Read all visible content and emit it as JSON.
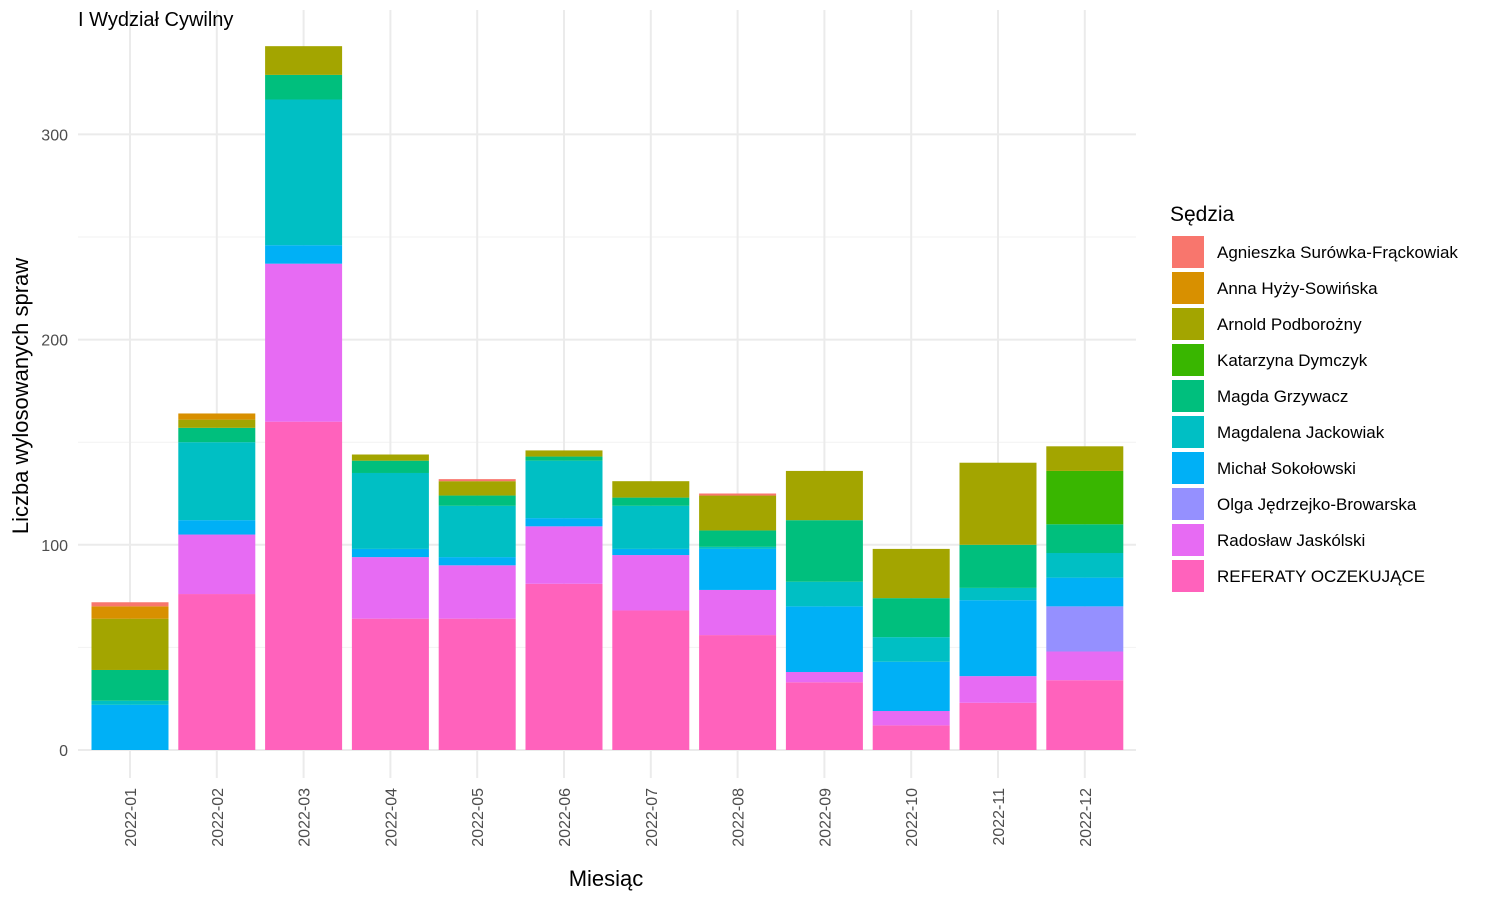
{
  "chart_data": {
    "type": "bar",
    "stacked": true,
    "title": "I Wydział Cywilny",
    "xlabel": "Miesiąc",
    "ylabel": "Liczba wylosowanych spraw",
    "ylim": [
      0,
      350
    ],
    "yticks": [
      0,
      100,
      200,
      300
    ],
    "grid": true,
    "legend_title": "Sędzia",
    "legend_position": "right",
    "categories": [
      "2022-01",
      "2022-02",
      "2022-03",
      "2022-04",
      "2022-05",
      "2022-06",
      "2022-07",
      "2022-08",
      "2022-09",
      "2022-10",
      "2022-11",
      "2022-12"
    ],
    "stack_order": [
      "REFERATY OCZEKUJĄCE",
      "Radosław Jaskólski",
      "Olga Jędrzejko-Browarska",
      "Michał Sokołowski",
      "Magdalena Jackowiak",
      "Magda Grzywacz",
      "Katarzyna Dymczyk",
      "Arnold Podborożny",
      "Anna Hyży-Sowińska",
      "Agnieszka Surówka-Frąckowiak"
    ],
    "series": [
      {
        "name": "Agnieszka Surówka-Frąckowiak",
        "color": "#F8766D",
        "values": [
          2,
          0,
          0,
          0,
          1,
          0,
          0,
          1,
          0,
          0,
          0,
          0
        ]
      },
      {
        "name": "Anna Hyży-Sowińska",
        "color": "#D89000",
        "values": [
          6,
          3,
          0,
          0,
          0,
          0,
          0,
          0,
          0,
          0,
          0,
          0
        ]
      },
      {
        "name": "Arnold Podborożny",
        "color": "#A3A500",
        "values": [
          25,
          4,
          14,
          3,
          7,
          3,
          8,
          17,
          24,
          24,
          40,
          12
        ]
      },
      {
        "name": "Katarzyna Dymczyk",
        "color": "#39B600",
        "values": [
          0,
          0,
          0,
          0,
          0,
          0,
          0,
          0,
          0,
          0,
          0,
          26
        ]
      },
      {
        "name": "Magda Grzywacz",
        "color": "#00BF7D",
        "values": [
          15,
          7,
          12,
          6,
          5,
          2,
          4,
          8,
          30,
          19,
          21,
          14
        ]
      },
      {
        "name": "Magdalena Jackowiak",
        "color": "#00BFC4",
        "values": [
          2,
          38,
          71,
          37,
          25,
          28,
          21,
          1,
          12,
          12,
          6,
          12
        ]
      },
      {
        "name": "Michał Sokołowski",
        "color": "#00B0F6",
        "values": [
          22,
          7,
          9,
          4,
          4,
          4,
          3,
          20,
          32,
          24,
          37,
          14
        ]
      },
      {
        "name": "Olga Jędrzejko-Browarska",
        "color": "#9590FF",
        "values": [
          0,
          0,
          0,
          0,
          0,
          0,
          0,
          0,
          0,
          0,
          0,
          22
        ]
      },
      {
        "name": "Radosław Jaskólski",
        "color": "#E76BF3",
        "values": [
          0,
          29,
          77,
          30,
          26,
          28,
          27,
          22,
          5,
          7,
          13,
          14
        ]
      },
      {
        "name": "REFERATY OCZEKUJĄCE",
        "color": "#FF62BC",
        "values": [
          0,
          76,
          160,
          64,
          64,
          81,
          68,
          56,
          33,
          12,
          23,
          34
        ]
      }
    ]
  }
}
